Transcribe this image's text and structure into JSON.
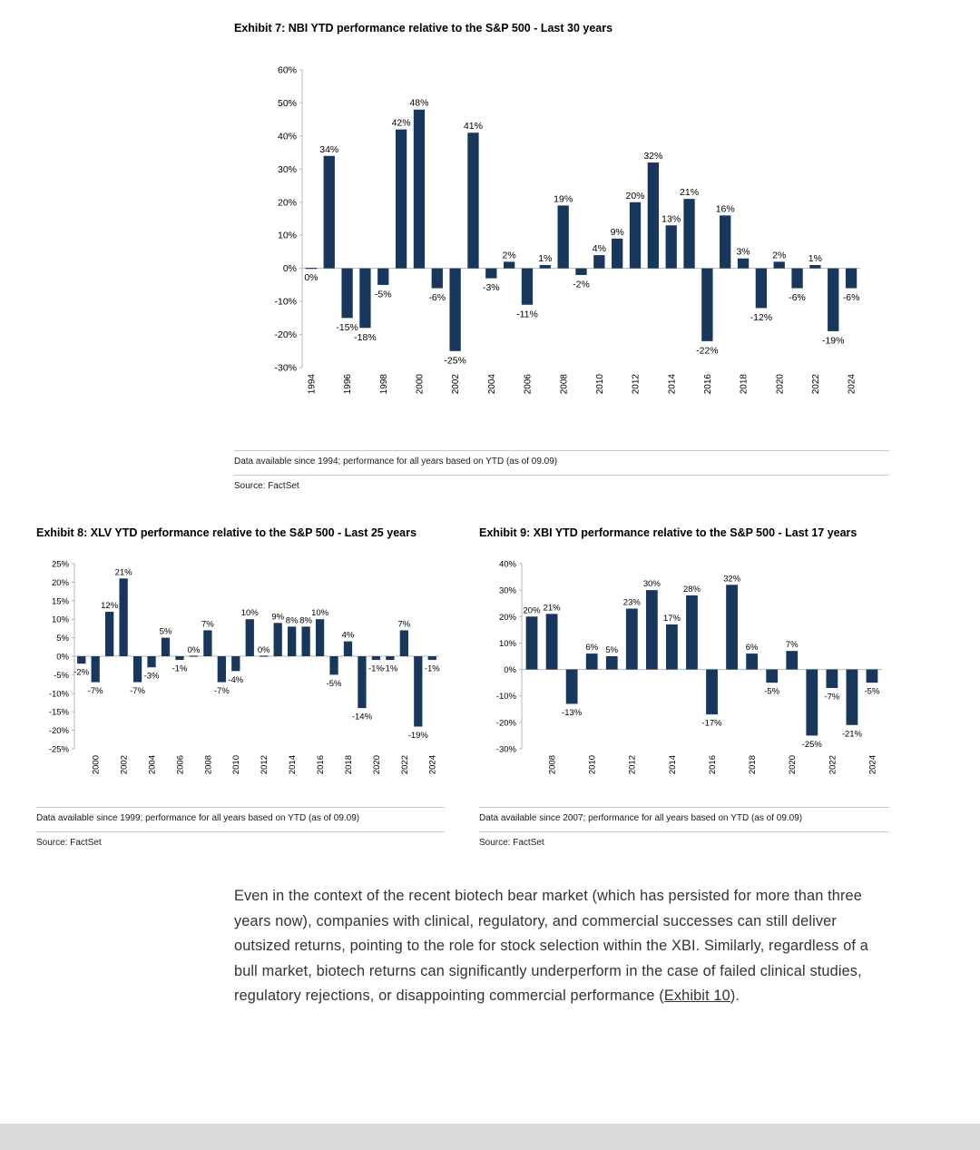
{
  "colors": {
    "bar": "#17375c",
    "axis": "#b7b7b7"
  },
  "paragraph": {
    "before": "Even in the context of the recent biotech bear market (which has persisted for more than three years now), companies with clinical, regulatory, and commercial successes can still deliver outsized returns, pointing to the role for stock selection within the XBI. Similarly, regardless of a bull market, biotech returns can significantly underperform in the case of failed clinical studies, regulatory rejections, or disappointing commercial performance (",
    "link": "Exhibit 10",
    "after": ")."
  },
  "chart_data": [
    {
      "type": "bar",
      "title": "Exhibit 7: NBI YTD performance relative to the S&P 500 - Last 30 years",
      "footnote": "Data available since 1994; performance for all years based on YTD (as of 09.09)",
      "source": "Source: FactSet",
      "categories": [
        1994,
        1995,
        1996,
        1997,
        1998,
        1999,
        2000,
        2001,
        2002,
        2003,
        2004,
        2005,
        2006,
        2007,
        2008,
        2009,
        2010,
        2011,
        2012,
        2013,
        2014,
        2015,
        2016,
        2017,
        2018,
        2019,
        2020,
        2021,
        2022,
        2023,
        2024
      ],
      "values": [
        0,
        34,
        -15,
        -18,
        -5,
        42,
        48,
        -6,
        -25,
        41,
        -3,
        2,
        -11,
        1,
        19,
        -2,
        4,
        9,
        20,
        32,
        13,
        21,
        -22,
        16,
        3,
        -12,
        2,
        -6,
        1,
        -19,
        -6
      ],
      "ylim": [
        -30,
        60
      ],
      "ytick_step": 10,
      "xtick_every": 2,
      "grid": false,
      "legend": "none"
    },
    {
      "type": "bar",
      "title": "Exhibit 8: XLV YTD performance relative to the S&P 500 - Last 25 years",
      "footnote": "Data available since 1999; performance for all years based on YTD (as of 09.09)",
      "source": "Source: FactSet",
      "categories": [
        1999,
        2000,
        2001,
        2002,
        2003,
        2004,
        2005,
        2006,
        2007,
        2008,
        2009,
        2010,
        2011,
        2012,
        2013,
        2014,
        2015,
        2016,
        2017,
        2018,
        2019,
        2020,
        2021,
        2022,
        2023,
        2024
      ],
      "values": [
        -2,
        -7,
        12,
        21,
        -7,
        -3,
        5,
        -1,
        0,
        7,
        -7,
        -4,
        10,
        0,
        9,
        8,
        8,
        10,
        -5,
        4,
        -14,
        -1,
        -1,
        7,
        -19,
        -1
      ],
      "ylim": [
        -25,
        25
      ],
      "ytick_step": 5,
      "xtick_every": 2,
      "grid": false,
      "legend": "none"
    },
    {
      "type": "bar",
      "title": "Exhibit 9: XBI YTD performance relative to the S&P 500 - Last 17 years",
      "footnote": "Data available since 2007; performance for all years based on YTD (as of 09.09)",
      "source": "Source: FactSet",
      "categories": [
        2007,
        2008,
        2009,
        2010,
        2011,
        2012,
        2013,
        2014,
        2015,
        2016,
        2017,
        2018,
        2019,
        2020,
        2021,
        2022,
        2023,
        2024
      ],
      "values": [
        20,
        21,
        -13,
        6,
        5,
        23,
        30,
        17,
        28,
        -17,
        32,
        6,
        -5,
        7,
        -25,
        -7,
        -21,
        -5
      ],
      "ylim": [
        -30,
        40
      ],
      "ytick_step": 10,
      "xtick_every": 2,
      "grid": false,
      "legend": "none"
    }
  ]
}
